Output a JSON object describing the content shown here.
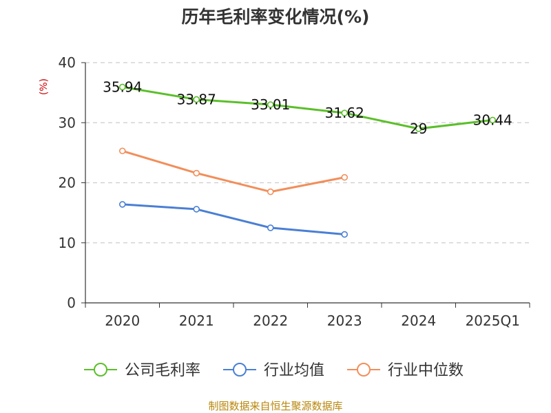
{
  "chart_data": {
    "type": "line",
    "title": "历年毛利率变化情况(%)",
    "ylabel": "(%)",
    "xlabel": "",
    "categories": [
      "2020",
      "2021",
      "2022",
      "2023",
      "2024",
      "2025Q1"
    ],
    "ylim": [
      0,
      40
    ],
    "yticks": [
      0,
      10,
      20,
      30,
      40
    ],
    "grid": true,
    "legend_position": "bottom",
    "series": [
      {
        "name": "公司毛利率",
        "color": "#5bbf2a",
        "values": [
          35.94,
          33.87,
          33.01,
          31.62,
          29,
          30.44
        ],
        "labels": [
          "35.94",
          "33.87",
          "33.01",
          "31.62",
          "29",
          "30.44"
        ]
      },
      {
        "name": "行业均值",
        "color": "#4a7fd4",
        "values": [
          16.4,
          15.6,
          12.5,
          11.4,
          null,
          null
        ]
      },
      {
        "name": "行业中位数",
        "color": "#f28e5a",
        "values": [
          25.3,
          21.6,
          18.5,
          20.9,
          null,
          null
        ]
      }
    ],
    "source": "制图数据来自恒生聚源数据库"
  }
}
